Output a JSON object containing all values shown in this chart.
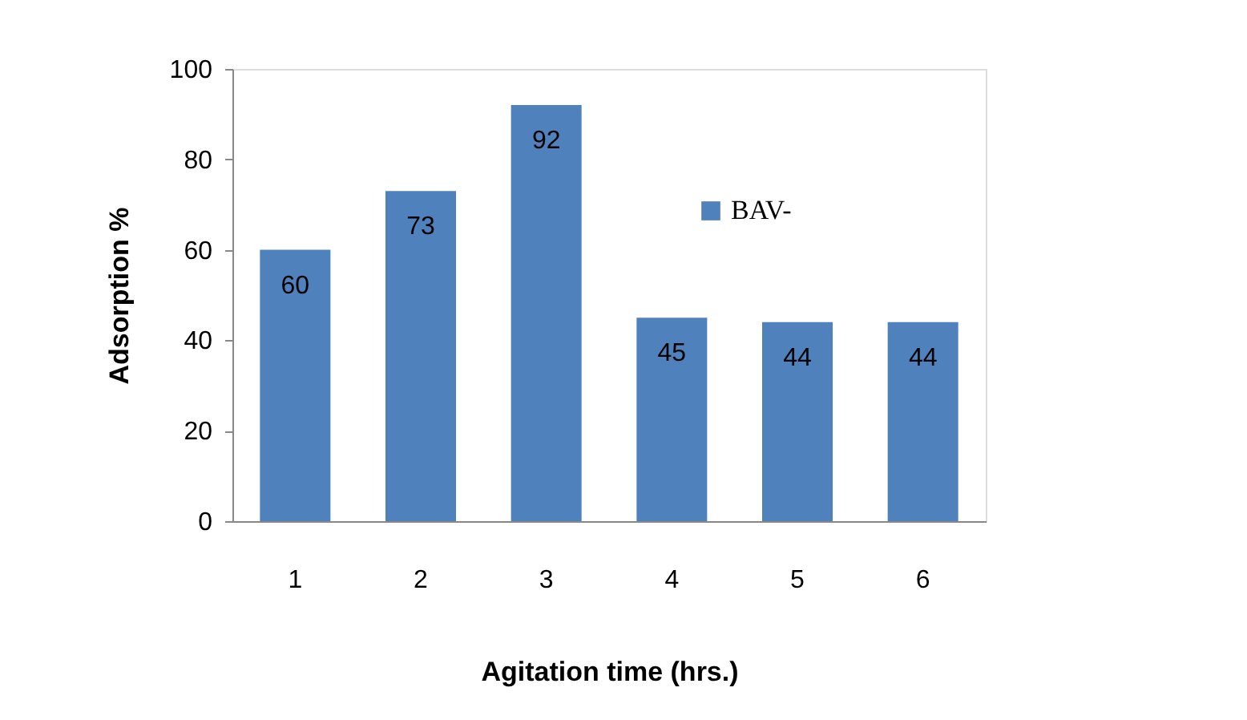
{
  "chart_data": {
    "type": "bar",
    "xlabel": "Agitation time (hrs.)",
    "ylabel": "Adsorption %",
    "categories": [
      "1",
      "2",
      "3",
      "4",
      "5",
      "6"
    ],
    "series": [
      {
        "name": "BAV-",
        "color": "#4f81bd",
        "values": [
          60,
          73,
          92,
          45,
          44,
          44
        ]
      }
    ],
    "ylim": [
      0,
      100
    ],
    "yticks": [
      0,
      20,
      40,
      60,
      80,
      100
    ],
    "grid": false,
    "legend": "top right",
    "data_labels": true
  }
}
